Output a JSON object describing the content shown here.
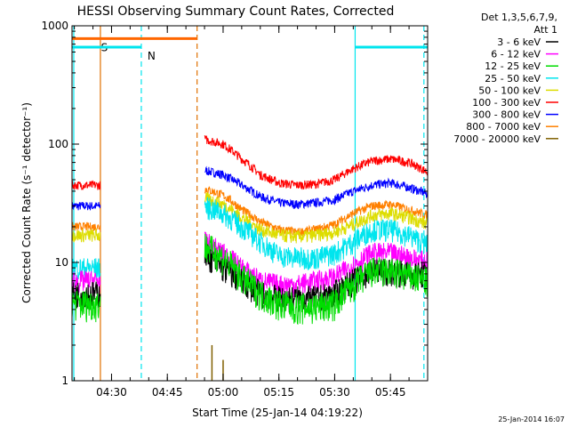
{
  "chart_data": {
    "type": "line",
    "title": "HESSI Observing Summary Count Rates, Corrected",
    "xlabel": "Start Time (25-Jan-14 04:19:22)",
    "ylabel": "Corrected Count Rate (s⁻¹ detector⁻¹)",
    "yscale": "log",
    "ylim": [
      1,
      1000
    ],
    "xlim": [
      "04:19:22",
      "05:55:00"
    ],
    "y_ticks": [
      "1",
      "10",
      "100",
      "1000"
    ],
    "x_ticks": [
      "04:30",
      "04:45",
      "05:00",
      "05:15",
      "05:30",
      "05:45"
    ],
    "legend_header": [
      "Det 1,3,5,6,7,9,",
      "Att 1"
    ],
    "legend_position": "right",
    "footer_date": "25-Jan-2014 16:07",
    "flags": [
      {
        "label": "S",
        "start": "04:19:22",
        "end": "04:53:00",
        "level": 780,
        "color": "#ff6600"
      },
      {
        "label": "N",
        "start": "04:19:22",
        "end": "04:38:00",
        "level": 660,
        "color": "#00e5ee"
      },
      {
        "label": "",
        "start": "05:35:30",
        "end": "05:55:00",
        "level": 660,
        "color": "#00e5ee"
      }
    ],
    "markers": [
      {
        "time": "04:27:00",
        "style": "solid",
        "color": "#e07000"
      },
      {
        "time": "04:53:00",
        "style": "dashed",
        "color": "#e07000"
      },
      {
        "time": "04:19:50",
        "style": "solid",
        "color": "#00e5ee"
      },
      {
        "time": "04:38:00",
        "style": "dashed",
        "color": "#00e5ee"
      },
      {
        "time": "05:35:30",
        "style": "solid",
        "color": "#00e5ee"
      },
      {
        "time": "05:54:00",
        "style": "dashed",
        "color": "#00e5ee"
      }
    ],
    "data_gaps": [
      [
        "04:27:00",
        "04:55:00"
      ]
    ],
    "data_start": "04:19:22",
    "data_end": "05:55:00",
    "x": [
      "04:19:22",
      "04:27:00",
      "04:55:00",
      "05:00:00",
      "05:05:00",
      "05:10:00",
      "05:15:00",
      "05:20:00",
      "05:25:00",
      "05:30:00",
      "05:35:00",
      "05:40:00",
      "05:45:00",
      "05:50:00",
      "05:55:00"
    ],
    "series": [
      {
        "name": "3 - 6 keV",
        "color": "#000000",
        "noise": 0.12,
        "values": [
          5.5,
          5.5,
          12,
          9,
          7,
          5.5,
          5,
          5,
          5,
          5.5,
          7,
          8.5,
          8.5,
          8,
          8
        ]
      },
      {
        "name": "6 - 12 keV",
        "color": "#ff00ff",
        "noise": 0.1,
        "values": [
          7,
          7,
          15,
          12,
          9,
          7,
          6.5,
          6.5,
          7,
          7.5,
          9.5,
          12,
          12,
          11,
          10
        ]
      },
      {
        "name": "12 - 25 keV",
        "color": "#00dd00",
        "noise": 0.14,
        "values": [
          4.5,
          4.5,
          14,
          11,
          7.5,
          5.5,
          4.5,
          4.2,
          4.2,
          4.5,
          6.5,
          8.5,
          8.5,
          7.8,
          7
        ]
      },
      {
        "name": "25 - 50 keV",
        "color": "#00e5ee",
        "noise": 0.1,
        "values": [
          9,
          9,
          30,
          26,
          20,
          15,
          11.5,
          11,
          11,
          12,
          15,
          19,
          19,
          17,
          14
        ]
      },
      {
        "name": "50 - 100 keV",
        "color": "#dddd00",
        "noise": 0.06,
        "values": [
          17,
          17,
          35,
          31,
          24,
          19,
          17,
          16.5,
          17,
          18,
          21,
          25,
          26,
          24,
          21
        ]
      },
      {
        "name": "100 - 300 keV",
        "color": "#ff0000",
        "noise": 0.04,
        "values": [
          45,
          45,
          110,
          100,
          75,
          55,
          47,
          45,
          46,
          50,
          62,
          72,
          75,
          70,
          58
        ]
      },
      {
        "name": "300 - 800 keV",
        "color": "#0000ff",
        "noise": 0.04,
        "values": [
          30,
          30,
          60,
          55,
          45,
          36,
          32,
          31,
          32,
          34,
          40,
          45,
          47,
          43,
          38
        ]
      },
      {
        "name": "800 - 7000 keV",
        "color": "#ff8000",
        "noise": 0.04,
        "values": [
          20,
          20,
          42,
          37,
          28,
          22,
          19,
          18,
          19,
          21,
          26,
          30,
          31,
          28,
          25
        ]
      },
      {
        "name": "7000 - 20000 keV",
        "color": "#806000",
        "noise": 0.0,
        "values": [
          null,
          null,
          null,
          null,
          null,
          null,
          null,
          null,
          null,
          null,
          null,
          null,
          null,
          null,
          null
        ],
        "spikes": [
          {
            "time": "04:57:00",
            "value": 2
          },
          {
            "time": "05:00:00",
            "value": 1.5
          }
        ]
      }
    ]
  }
}
